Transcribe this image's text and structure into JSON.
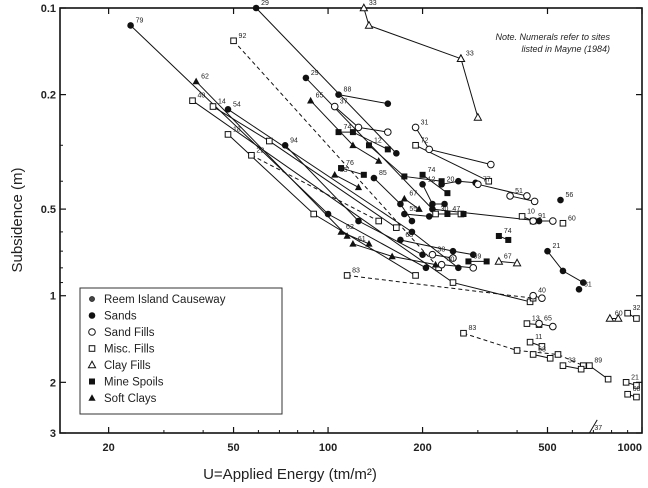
{
  "chart_data": {
    "type": "scatter",
    "xlabel": "U=Applied Energy (tm/m²)",
    "ylabel": "Subsidence (m)",
    "xscale": "log",
    "yscale": "log",
    "yaxis_inverted": true,
    "xlim": [
      14,
      1000
    ],
    "ylim": [
      0.1,
      3
    ],
    "x_ticks": [
      {
        "value": 20,
        "label": "20"
      },
      {
        "value": 50,
        "label": "50"
      },
      {
        "value": 100,
        "label": "100"
      },
      {
        "value": 200,
        "label": "200"
      },
      {
        "value": 500,
        "label": "500"
      },
      {
        "value": 1000,
        "label": "1000"
      }
    ],
    "y_ticks": [
      {
        "value": 0.1,
        "label": "0.1"
      },
      {
        "value": 0.2,
        "label": "0.2"
      },
      {
        "value": 0.5,
        "label": "0.5"
      },
      {
        "value": 1,
        "label": "1"
      },
      {
        "value": 2,
        "label": "2"
      },
      {
        "value": 3,
        "label": "3"
      }
    ],
    "note": [
      "Note. Numerals refer to sites",
      "listed in Mayne (1984)"
    ],
    "legend": {
      "placement": "bottom-left",
      "entries": [
        {
          "label": "Reem Island Causeway",
          "marker": "dot"
        },
        {
          "label": "Sands",
          "marker": "filled-circle"
        },
        {
          "label": "Sand Fills",
          "marker": "open-circle"
        },
        {
          "label": "Misc. Fills",
          "marker": "open-square"
        },
        {
          "label": "Clay Fills",
          "marker": "open-triangle"
        },
        {
          "label": "Mine Spoils",
          "marker": "filled-square"
        },
        {
          "label": "Soft Clays",
          "marker": "filled-triangle"
        }
      ]
    },
    "series": [
      {
        "site": "79",
        "marker": "filled-circle",
        "line": "solid",
        "points": [
          [
            23.5,
            0.115
          ],
          [
            100,
            0.52
          ],
          [
            205,
            0.8
          ]
        ]
      },
      {
        "site": "29",
        "marker": "filled-circle",
        "line": "solid",
        "points": [
          [
            59,
            0.1
          ],
          [
            165,
            0.32
          ]
        ]
      },
      {
        "site": "33",
        "marker": "open-triangle",
        "line": "solid",
        "points": [
          [
            130,
            0.1
          ],
          [
            135,
            0.115
          ],
          [
            265,
            0.15
          ]
        ]
      },
      {
        "site": "33",
        "marker": "open-triangle",
        "line": "solid",
        "points": [
          [
            265,
            0.15
          ],
          [
            300,
            0.24
          ]
        ]
      },
      {
        "site": "92",
        "marker": "open-square",
        "line": "dashed",
        "points": [
          [
            50,
            0.13
          ],
          [
            225,
            0.8
          ]
        ]
      },
      {
        "site": "29",
        "marker": "filled-circle",
        "line": "solid",
        "points": [
          [
            85,
            0.175
          ],
          [
            215,
            0.5
          ],
          [
            470,
            0.55
          ]
        ]
      },
      {
        "site": "62",
        "marker": "filled-triangle",
        "line": "solid",
        "points": [
          [
            38,
            0.18
          ],
          [
            115,
            0.62
          ]
        ]
      },
      {
        "site": "40",
        "marker": "open-square",
        "line": "solid",
        "points": [
          [
            37,
            0.21
          ],
          [
            250,
            0.9
          ],
          [
            440,
            1.05
          ]
        ]
      },
      {
        "site": "14",
        "marker": "open-square",
        "line": "solid",
        "points": [
          [
            43,
            0.22
          ],
          [
            65,
            0.29
          ],
          [
            165,
            0.58
          ]
        ]
      },
      {
        "site": "54",
        "marker": "filled-circle",
        "line": "solid",
        "points": [
          [
            48,
            0.225
          ],
          [
            185,
            0.6
          ],
          [
            260,
            0.8
          ]
        ]
      },
      {
        "site": "18",
        "marker": "open-square",
        "line": "solid",
        "points": [
          [
            48,
            0.275
          ],
          [
            90,
            0.52
          ],
          [
            190,
            0.85
          ]
        ]
      },
      {
        "site": "22",
        "marker": "open-square",
        "line": "dashed",
        "points": [
          [
            57,
            0.325
          ],
          [
            145,
            0.55
          ]
        ]
      },
      {
        "site": "94",
        "marker": "filled-circle",
        "line": "solid",
        "points": [
          [
            73,
            0.3
          ],
          [
            125,
            0.55
          ],
          [
            200,
            0.72
          ]
        ]
      },
      {
        "site": "88",
        "marker": "filled-circle",
        "line": "solid",
        "points": [
          [
            108,
            0.2
          ],
          [
            155,
            0.215
          ]
        ]
      },
      {
        "site": "65",
        "marker": "filled-triangle",
        "line": "solid",
        "points": [
          [
            88,
            0.21
          ],
          [
            120,
            0.3
          ],
          [
            145,
            0.34
          ]
        ]
      },
      {
        "site": "37",
        "marker": "open-circle",
        "line": "solid",
        "points": [
          [
            105,
            0.22
          ],
          [
            125,
            0.26
          ],
          [
            155,
            0.27
          ]
        ]
      },
      {
        "site": "31",
        "marker": "open-circle",
        "line": "solid",
        "points": [
          [
            190,
            0.26
          ],
          [
            210,
            0.31
          ],
          [
            330,
            0.35
          ]
        ]
      },
      {
        "site": "72",
        "marker": "open-square",
        "line": "solid",
        "points": [
          [
            190,
            0.3
          ],
          [
            325,
            0.4
          ]
        ]
      },
      {
        "site": "74",
        "marker": "filled-square",
        "line": "solid",
        "points": [
          [
            108,
            0.27
          ],
          [
            120,
            0.27
          ],
          [
            155,
            0.31
          ]
        ]
      },
      {
        "site": "12",
        "marker": "filled-square",
        "line": "solid",
        "points": [
          [
            135,
            0.3
          ],
          [
            175,
            0.385
          ],
          [
            230,
            0.4
          ]
        ]
      },
      {
        "site": "20",
        "marker": "filled-circle",
        "line": "solid",
        "points": [
          [
            230,
            0.41
          ],
          [
            260,
            0.4
          ],
          [
            295,
            0.405
          ]
        ]
      },
      {
        "site": "77",
        "marker": "open-circle",
        "line": "solid",
        "points": [
          [
            300,
            0.41
          ],
          [
            430,
            0.45
          ]
        ]
      },
      {
        "site": "51",
        "marker": "open-circle",
        "line": "solid",
        "points": [
          [
            380,
            0.45
          ],
          [
            455,
            0.47
          ]
        ]
      },
      {
        "site": "56",
        "marker": "filled-circle",
        "line": "none",
        "points": [
          [
            550,
            0.465
          ]
        ]
      },
      {
        "site": "74",
        "marker": "filled-square",
        "line": "solid",
        "points": [
          [
            200,
            0.38
          ],
          [
            240,
            0.44
          ]
        ]
      },
      {
        "site": "12",
        "marker": "filled-circle",
        "line": "solid",
        "points": [
          [
            200,
            0.41
          ],
          [
            215,
            0.48
          ],
          [
            235,
            0.48
          ]
        ]
      },
      {
        "site": "85",
        "marker": "filled-triangle",
        "line": "solid",
        "points": [
          [
            105,
            0.38
          ],
          [
            125,
            0.42
          ]
        ]
      },
      {
        "site": "76",
        "marker": "filled-square",
        "line": "solid",
        "points": [
          [
            110,
            0.36
          ],
          [
            130,
            0.38
          ]
        ]
      },
      {
        "site": "85",
        "marker": "filled-circle",
        "line": "solid",
        "points": [
          [
            140,
            0.39
          ],
          [
            170,
            0.48
          ],
          [
            185,
            0.55
          ]
        ]
      },
      {
        "site": "67",
        "marker": "filled-triangle",
        "line": "solid",
        "points": [
          [
            175,
            0.46
          ],
          [
            195,
            0.5
          ]
        ]
      },
      {
        "site": "55",
        "marker": "filled-circle",
        "line": "solid",
        "points": [
          [
            175,
            0.52
          ],
          [
            210,
            0.53
          ]
        ]
      },
      {
        "site": "30",
        "marker": "open-square",
        "line": "solid",
        "points": [
          [
            220,
            0.52
          ],
          [
            265,
            0.52
          ]
        ]
      },
      {
        "site": "47",
        "marker": "filled-square",
        "line": "solid",
        "points": [
          [
            240,
            0.52
          ],
          [
            270,
            0.52
          ]
        ]
      },
      {
        "site": "10",
        "marker": "open-square",
        "line": "solid",
        "points": [
          [
            415,
            0.53
          ],
          [
            450,
            0.55
          ]
        ]
      },
      {
        "site": "91",
        "marker": "open-circle",
        "line": "solid",
        "points": [
          [
            450,
            0.55
          ],
          [
            520,
            0.55
          ]
        ]
      },
      {
        "site": "60",
        "marker": "open-square",
        "line": "none",
        "points": [
          [
            560,
            0.56
          ]
        ]
      },
      {
        "site": "74",
        "marker": "filled-square",
        "line": "solid",
        "points": [
          [
            350,
            0.62
          ],
          [
            375,
            0.64
          ]
        ]
      },
      {
        "site": "63",
        "marker": "filled-circle",
        "line": "solid",
        "points": [
          [
            170,
            0.64
          ],
          [
            250,
            0.7
          ],
          [
            290,
            0.72
          ]
        ]
      },
      {
        "site": "38",
        "marker": "open-circle",
        "line": "solid",
        "points": [
          [
            215,
            0.72
          ],
          [
            250,
            0.74
          ]
        ]
      },
      {
        "site": "59",
        "marker": "filled-square",
        "line": "solid",
        "points": [
          [
            280,
            0.76
          ],
          [
            320,
            0.76
          ]
        ]
      },
      {
        "site": "67",
        "marker": "open-triangle",
        "line": "solid",
        "points": [
          [
            350,
            0.76
          ],
          [
            400,
            0.77
          ]
        ]
      },
      {
        "site": "40",
        "marker": "open-circle",
        "line": "solid",
        "points": [
          [
            230,
            0.78
          ],
          [
            290,
            0.8
          ]
        ]
      },
      {
        "site": "21",
        "marker": "filled-circle",
        "line": "solid",
        "points": [
          [
            500,
            0.7
          ],
          [
            560,
            0.82
          ],
          [
            650,
            0.9
          ]
        ]
      },
      {
        "site": "61",
        "marker": "filled-triangle",
        "line": "solid",
        "points": [
          [
            120,
            0.66
          ],
          [
            160,
            0.73
          ],
          [
            220,
            0.78
          ]
        ]
      },
      {
        "site": "62",
        "marker": "filled-triangle",
        "line": "solid",
        "points": [
          [
            110,
            0.6
          ],
          [
            135,
            0.66
          ]
        ]
      },
      {
        "site": "83",
        "marker": "open-square",
        "line": "dashed",
        "points": [
          [
            115,
            0.85
          ],
          [
            450,
            1.02
          ]
        ]
      },
      {
        "site": "40",
        "marker": "open-circle",
        "line": "solid",
        "points": [
          [
            450,
            1.0
          ],
          [
            480,
            1.02
          ]
        ]
      },
      {
        "site": "81",
        "marker": "filled-circle",
        "line": "none",
        "points": [
          [
            630,
            0.95
          ]
        ]
      },
      {
        "site": "13",
        "marker": "open-square",
        "line": "solid",
        "points": [
          [
            430,
            1.25
          ],
          [
            470,
            1.26
          ]
        ]
      },
      {
        "site": "65",
        "marker": "open-circle",
        "line": "solid",
        "points": [
          [
            470,
            1.25
          ],
          [
            520,
            1.28
          ]
        ]
      },
      {
        "site": "60",
        "marker": "open-triangle",
        "line": "solid",
        "points": [
          [
            790,
            1.2
          ],
          [
            840,
            1.2
          ]
        ]
      },
      {
        "site": "32",
        "marker": "open-square",
        "line": "solid",
        "points": [
          [
            900,
            1.15
          ],
          [
            960,
            1.2
          ]
        ]
      },
      {
        "site": "83",
        "marker": "open-square",
        "line": "dashed",
        "points": [
          [
            270,
            1.35
          ],
          [
            400,
            1.55
          ],
          [
            540,
            1.6
          ],
          [
            650,
            1.75
          ]
        ]
      },
      {
        "site": "11",
        "marker": "open-square",
        "line": "solid",
        "points": [
          [
            440,
            1.45
          ],
          [
            480,
            1.5
          ]
        ]
      },
      {
        "site": "63",
        "marker": "open-square",
        "line": "solid",
        "points": [
          [
            450,
            1.6
          ],
          [
            510,
            1.65
          ]
        ]
      },
      {
        "site": "33",
        "marker": "open-square",
        "line": "solid",
        "points": [
          [
            560,
            1.75
          ],
          [
            640,
            1.8
          ]
        ]
      },
      {
        "site": "89",
        "marker": "open-square",
        "line": "solid",
        "points": [
          [
            680,
            1.75
          ],
          [
            780,
            1.95
          ]
        ]
      },
      {
        "site": "21",
        "marker": "open-square",
        "line": "solid",
        "points": [
          [
            890,
            2.0
          ],
          [
            960,
            2.05
          ]
        ]
      },
      {
        "site": "68",
        "marker": "open-square",
        "line": "solid",
        "points": [
          [
            900,
            2.2
          ],
          [
            960,
            2.25
          ]
        ]
      },
      {
        "site": "37",
        "marker": "none",
        "line": "solid",
        "points": [
          [
            680,
            3.0
          ],
          [
            720,
            2.7
          ]
        ]
      }
    ]
  }
}
